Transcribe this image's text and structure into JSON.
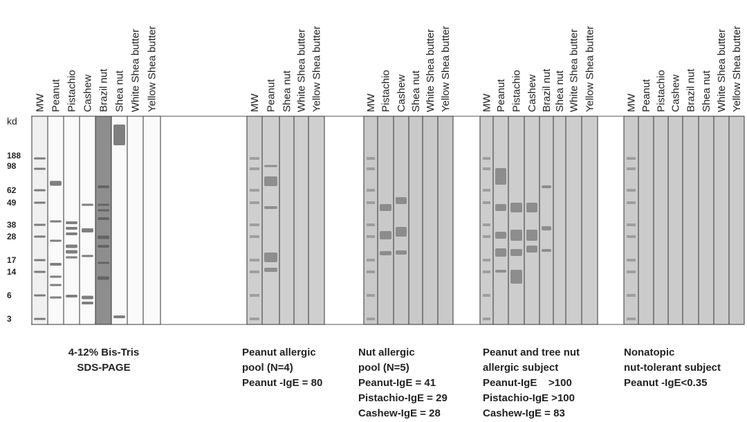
{
  "y_axis_label": "kd",
  "mw_markers": [
    "188",
    "98",
    "62",
    "49",
    "38",
    "28",
    "17",
    "14",
    "6",
    "3"
  ],
  "panels": [
    {
      "lanes": [
        "MW",
        "Peanut",
        "Pistachio",
        "Cashew",
        "Brazil nut",
        "Shea nut",
        "White Shea butter",
        "Yellow Shea butter"
      ],
      "caption": [
        "4-12% Bis-Tris",
        "SDS-PAGE"
      ]
    },
    {
      "lanes": [
        "MW",
        "Peanut",
        "Shea nut",
        "White Shea butter",
        "Yellow Shea butter"
      ],
      "caption": [
        "Peanut allergic",
        "pool (N=4)",
        "Peanut -IgE = 80"
      ]
    },
    {
      "lanes": [
        "MW",
        "Pistachio",
        "Cashew",
        "Shea nut",
        "White Shea butter",
        "Yellow Shea butter"
      ],
      "caption": [
        "Nut allergic",
        "pool (N=5)",
        "Peanut-IgE = 41",
        "Pistachio-IgE = 29",
        "Cashew-IgE = 28"
      ]
    },
    {
      "lanes": [
        "MW",
        "Peanut",
        "Pistachio",
        "Cashew",
        "Brazil nut",
        "Shea nut",
        "White Shea butter",
        "Yellow Shea butter"
      ],
      "caption": [
        "Peanut and tree nut",
        "allergic subject",
        "Peanut-IgE    >100",
        "Pistachio-IgE >100",
        "Cashew-IgE = 83"
      ]
    },
    {
      "lanes": [
        "MW",
        "Peanut",
        "Pistachio",
        "Cashew",
        "Brazil nut",
        "Shea nut",
        "White Shea butter",
        "Yellow Shea butter"
      ],
      "caption": [
        "Nonatopic",
        "nut-tolerant subject",
        "Peanut -IgE<0.35"
      ]
    }
  ]
}
